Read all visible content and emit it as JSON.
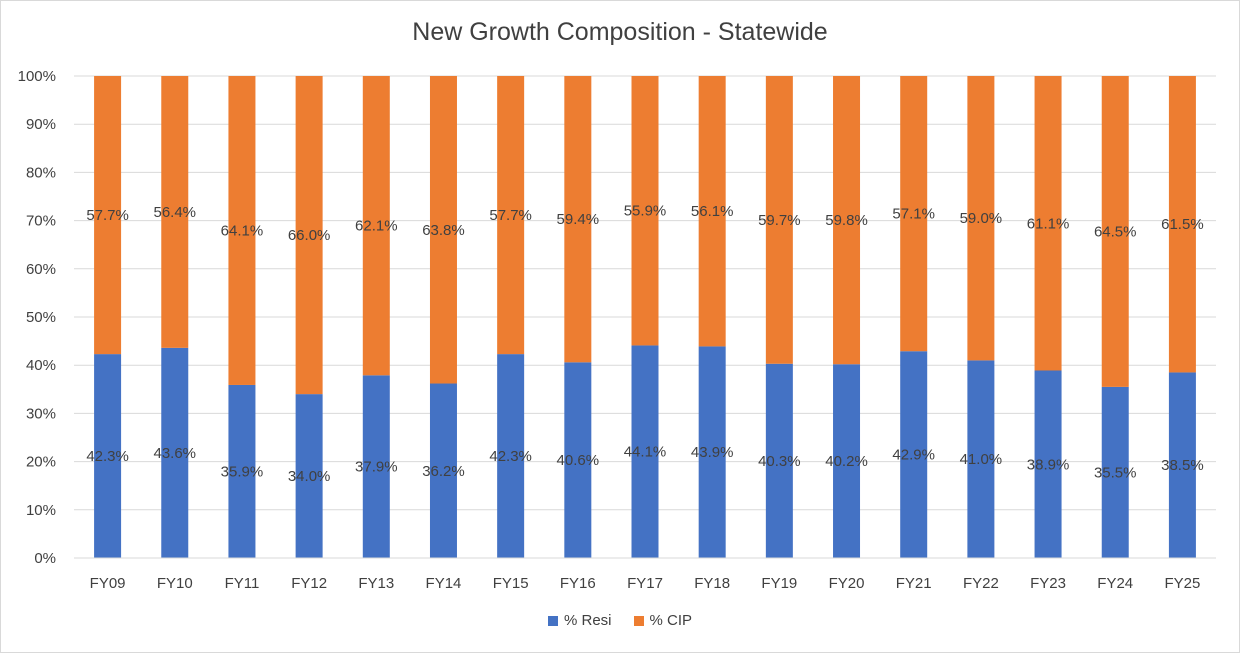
{
  "colors": {
    "resi": "#4472c4",
    "cip": "#ed7d31",
    "grid": "#d9d9d9",
    "text": "#404040"
  },
  "legend": {
    "resi_label": "% Resi",
    "cip_label": "% CIP"
  },
  "chart_data": {
    "type": "bar",
    "stacked": true,
    "title": "New Growth Composition - Statewide",
    "xlabel": "",
    "ylabel": "",
    "ylim": [
      0,
      100
    ],
    "yticks": [
      "0%",
      "10%",
      "20%",
      "30%",
      "40%",
      "50%",
      "60%",
      "70%",
      "80%",
      "90%",
      "100%"
    ],
    "grid": true,
    "legend_position": "bottom",
    "categories": [
      "FY09",
      "FY10",
      "FY11",
      "FY12",
      "FY13",
      "FY14",
      "FY15",
      "FY16",
      "FY17",
      "FY18",
      "FY19",
      "FY20",
      "FY21",
      "FY22",
      "FY23",
      "FY24",
      "FY25"
    ],
    "series": [
      {
        "name": "% Resi",
        "values": [
          42.3,
          43.6,
          35.9,
          34.0,
          37.9,
          36.2,
          42.3,
          40.6,
          44.1,
          43.9,
          40.3,
          40.2,
          42.9,
          41.0,
          38.9,
          35.5,
          38.5
        ],
        "labels": [
          "42.3%",
          "43.6%",
          "35.9%",
          "34.0%",
          "37.9%",
          "36.2%",
          "42.3%",
          "40.6%",
          "44.1%",
          "43.9%",
          "40.3%",
          "40.2%",
          "42.9%",
          "41.0%",
          "38.9%",
          "35.5%",
          "38.5%"
        ]
      },
      {
        "name": "% CIP",
        "values": [
          57.7,
          56.4,
          64.1,
          66.0,
          62.1,
          63.8,
          57.7,
          59.4,
          55.9,
          56.1,
          59.7,
          59.8,
          57.1,
          59.0,
          61.1,
          64.5,
          61.5
        ],
        "labels": [
          "57.7%",
          "56.4%",
          "64.1%",
          "66.0%",
          "62.1%",
          "63.8%",
          "57.7%",
          "59.4%",
          "55.9%",
          "56.1%",
          "59.7%",
          "59.8%",
          "57.1%",
          "59.0%",
          "61.1%",
          "64.5%",
          "61.5%"
        ]
      }
    ]
  }
}
